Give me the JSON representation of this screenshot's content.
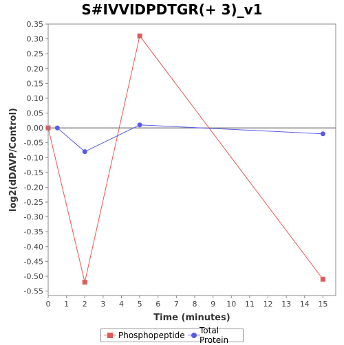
{
  "chart_data": {
    "type": "line",
    "title": "S#IVVIDPDTGR(+ 3)_v1",
    "xlabel": "Time (minutes)",
    "ylabel": "log2(dDAVP/Control)",
    "xlim": [
      0,
      15.7
    ],
    "ylim": [
      -0.565,
      0.35
    ],
    "x_ticks": [
      0,
      1,
      2,
      3,
      4,
      5,
      6,
      7,
      8,
      9,
      10,
      11,
      12,
      13,
      14,
      15
    ],
    "y_ticks": [
      0.35,
      0.3,
      0.25,
      0.2,
      0.15,
      0.1,
      0.05,
      0.0,
      -0.05,
      -0.1,
      -0.15,
      -0.2,
      -0.25,
      -0.3,
      -0.35,
      -0.4,
      -0.45,
      -0.5,
      -0.55
    ],
    "y_tick_labels": [
      "0.35",
      "0.30",
      "0.25",
      "0.20",
      "0.15",
      "0.10",
      "0.05",
      "0.00",
      "-0.05",
      "-0.10",
      "-0.15",
      "-0.20",
      "-0.25",
      "-0.30",
      "-0.35",
      "-0.40",
      "-0.45",
      "-0.50",
      "-0.55"
    ],
    "series": [
      {
        "name": "Phosphopeptide",
        "color": "#e05a5a",
        "marker": "square",
        "x": [
          0,
          2,
          5,
          15
        ],
        "y": [
          0.0,
          -0.52,
          0.31,
          -0.51
        ]
      },
      {
        "name": "Total Protein",
        "color": "#5a5ae8",
        "marker": "circle",
        "x": [
          0.5,
          2,
          5,
          15
        ],
        "y": [
          0.0,
          -0.08,
          0.01,
          -0.02
        ]
      }
    ],
    "reference_line_y": 0.0,
    "grid": false,
    "legend_position": "bottom"
  }
}
